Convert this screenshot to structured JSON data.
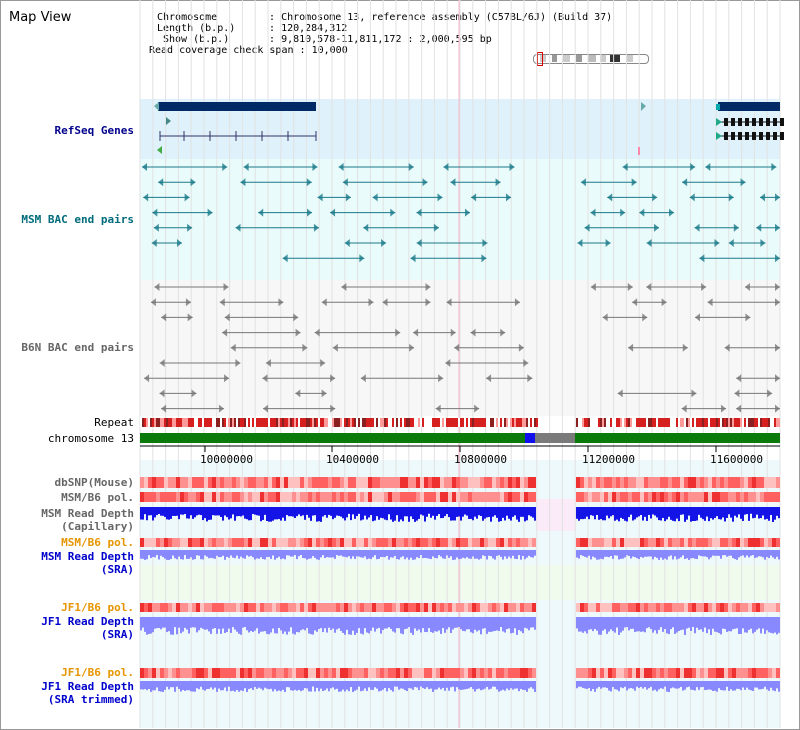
{
  "header": {
    "title": "Map View",
    "chromosome_key": "Chromosome",
    "chromosome_val": "Chromosome 13, reference assembly (C57BL/6J) (Build 37)",
    "length_key": "Length (b.p.)",
    "length_val": "120,284,312",
    "show_key": "Show (b.p.)",
    "show_val": "9,810,578-11,811,172 : 2,000,595 bp",
    "coverage_key": "Read coverage check span",
    "coverage_val": "10,000",
    "sep": ":"
  },
  "tracks": {
    "refseq": "RefSeq Genes",
    "msm_bac": "MSM BAC end pairs",
    "b6n_bac": "B6N BAC end pairs",
    "repeat": "Repeat",
    "chromosome": "chromosome 13",
    "dbsnp": "dbSNP(Mouse)",
    "msm_b6_pol": "MSM/B6 pol.",
    "msm_depth_cap": "MSM Read Depth\n(Capillary)",
    "msm_b6_pol2": "MSM/B6 pol.",
    "msm_depth_sra": "MSM Read Depth\n(SRA)",
    "jf1_b6_pol": "JF1/B6 pol.",
    "jf1_depth_sra": "JF1 Read Depth\n(SRA)",
    "jf1_b6_pol2": "JF1/B6 pol.",
    "jf1_depth_trim": "JF1 Read Depth\n(SRA trimmed)"
  },
  "axis": {
    "ticks": [
      "10000000",
      "10400000",
      "10800000",
      "11200000",
      "11600000"
    ]
  },
  "colors": {
    "refseq_bg": "#dff1fb",
    "msm_bg": "#e9fbfb",
    "b6n_bg": "#f7f7f7",
    "chrom_green": "#0a7a0a",
    "gene_navy": "#002a66",
    "depth_blue": "#1414e6",
    "depth_light": "#8888ff",
    "pol_red": "#f04848"
  }
}
